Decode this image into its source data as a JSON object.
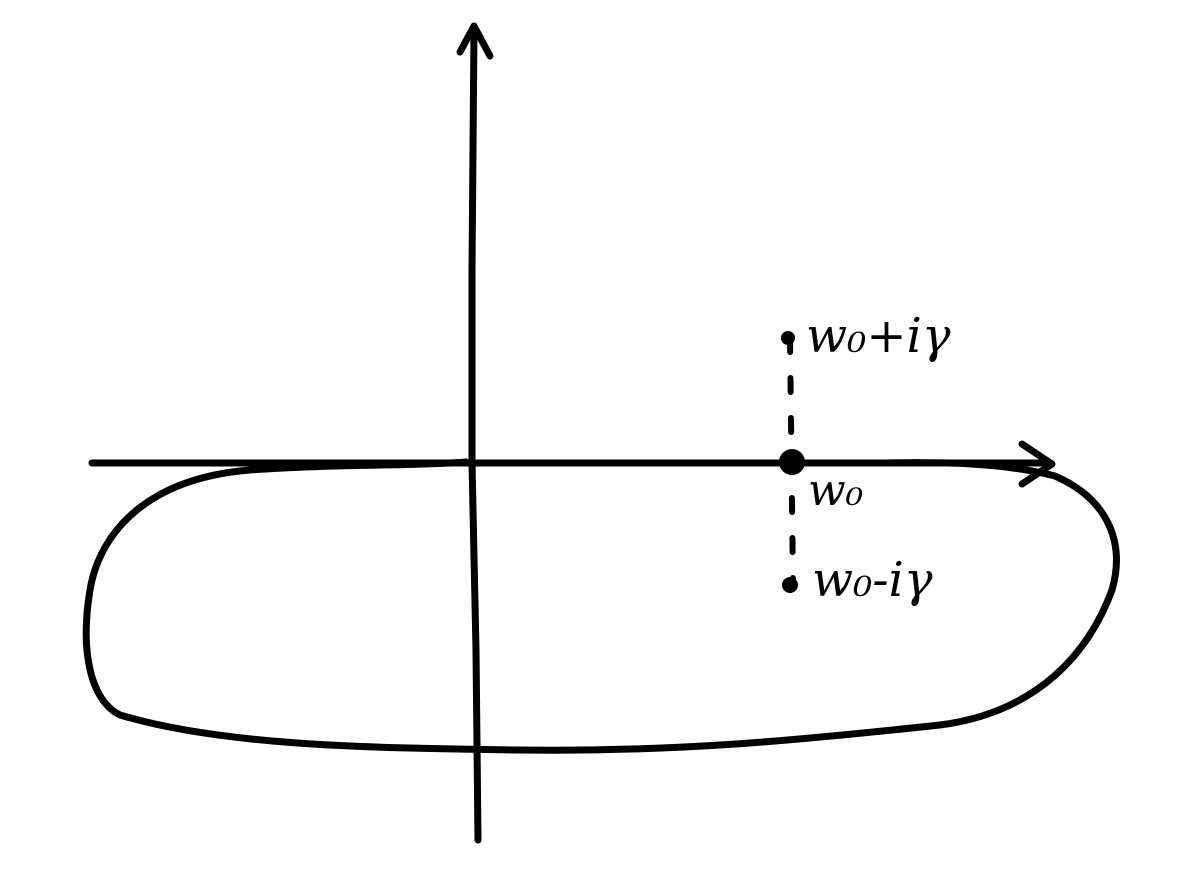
{
  "diagram": {
    "type": "complex-plane-contour",
    "ink_color": "#000000",
    "background_color": "#ffffff",
    "points": [
      {
        "id": "upper-pole",
        "label": "w₀+iγ"
      },
      {
        "id": "center",
        "label": "w₀"
      },
      {
        "id": "lower-pole",
        "label": "w₀-iγ"
      }
    ],
    "contour": {
      "description_visible": false,
      "closed": true
    }
  }
}
